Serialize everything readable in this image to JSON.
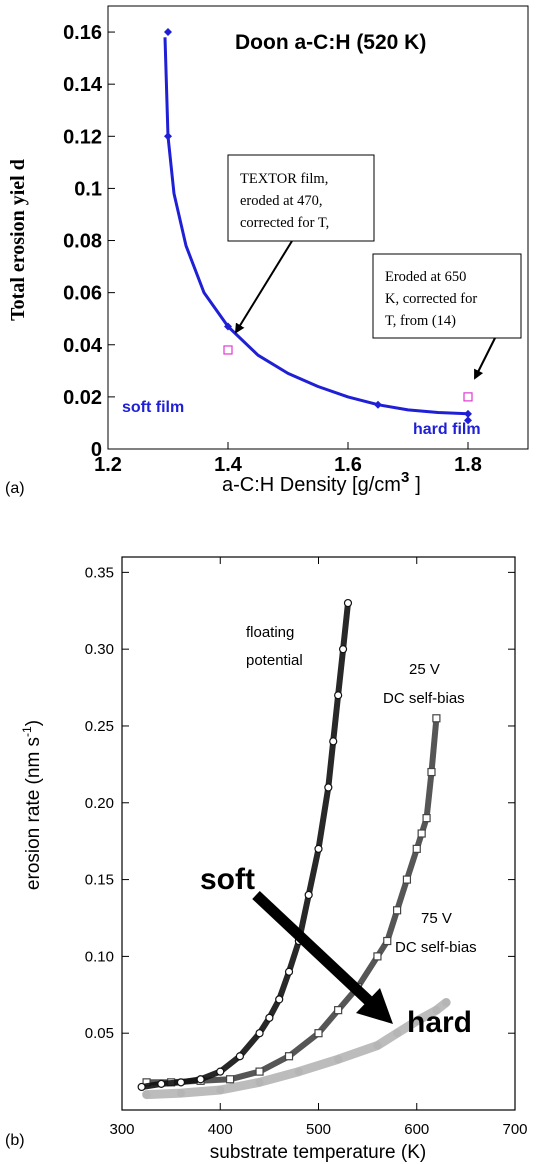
{
  "chart_data": [
    {
      "panel_label": "(a)",
      "type": "line",
      "title": "Doon a-C:H (520 K)",
      "xlabel_main": "a-C:H Density [g/cm",
      "xlabel_sup": "3",
      "xlabel_end": "]",
      "ylabel": "Total erosion yiel d",
      "xlim": [
        1.2,
        1.9
      ],
      "ylim": [
        0,
        0.17
      ],
      "xticks": [
        "1.2",
        "1.4",
        "1.6",
        "1.8"
      ],
      "yticks": [
        "0",
        "0.02",
        "0.04",
        "0.06",
        "0.08",
        "0.1",
        "0.12",
        "0.14",
        "0.16"
      ],
      "color": "#1f1fd6",
      "series": [
        {
          "kind": "fit-curve",
          "x": [
            1.295,
            1.3,
            1.31,
            1.33,
            1.36,
            1.4,
            1.45,
            1.5,
            1.55,
            1.6,
            1.65,
            1.7,
            1.75,
            1.8
          ],
          "y": [
            0.158,
            0.12,
            0.098,
            0.078,
            0.06,
            0.047,
            0.036,
            0.029,
            0.024,
            0.02,
            0.017,
            0.015,
            0.014,
            0.0135
          ]
        },
        {
          "kind": "data-points",
          "x": [
            1.3,
            1.3,
            1.4,
            1.65,
            1.8,
            1.8
          ],
          "y": [
            0.16,
            0.12,
            0.047,
            0.017,
            0.0135,
            0.011
          ]
        },
        {
          "kind": "open-squares",
          "color": "#e03ad0",
          "x": [
            1.4,
            1.8
          ],
          "y": [
            0.038,
            0.02
          ]
        }
      ],
      "annotations": [
        {
          "lines": [
            "TEXTOR film,",
            "eroded at 470,",
            "corrected for T,"
          ],
          "target": [
            1.4,
            0.045
          ]
        },
        {
          "lines": [
            "Eroded at 650",
            "K, corrected for",
            "T, from (14)"
          ],
          "target": [
            1.8,
            0.022
          ]
        }
      ],
      "labels": [
        {
          "text": "soft film",
          "at": [
            1.3,
            0.012
          ]
        },
        {
          "text": "hard film",
          "at": [
            1.82,
            0.004
          ]
        }
      ]
    },
    {
      "panel_label": "(b)",
      "type": "scatter",
      "xlabel": "substrate temperature (K)",
      "ylabel_main": "erosion rate (nm s",
      "ylabel_sup": "-1",
      "ylabel_end": ")",
      "xlim": [
        300,
        700
      ],
      "ylim": [
        0,
        0.36
      ],
      "xticks": [
        "300",
        "400",
        "500",
        "600",
        "700"
      ],
      "yticks": [
        "0.05",
        "0.10",
        "0.15",
        "0.20",
        "0.25",
        "0.30",
        "0.35"
      ],
      "series": [
        {
          "name": "floating potential",
          "color": "#111111",
          "x": [
            320,
            340,
            360,
            380,
            400,
            420,
            440,
            450,
            460,
            470,
            480,
            490,
            500,
            510,
            515,
            520,
            525,
            530
          ],
          "y": [
            0.015,
            0.017,
            0.018,
            0.02,
            0.025,
            0.035,
            0.05,
            0.06,
            0.072,
            0.09,
            0.11,
            0.14,
            0.17,
            0.21,
            0.24,
            0.27,
            0.3,
            0.33
          ]
        },
        {
          "name": "25 V DC self-bias",
          "color": "#444444",
          "x": [
            325,
            350,
            380,
            410,
            440,
            470,
            500,
            520,
            540,
            560,
            570,
            580,
            590,
            600,
            605,
            610,
            615,
            620
          ],
          "y": [
            0.018,
            0.018,
            0.019,
            0.02,
            0.025,
            0.035,
            0.05,
            0.065,
            0.08,
            0.1,
            0.11,
            0.13,
            0.15,
            0.17,
            0.18,
            0.19,
            0.22,
            0.255
          ]
        },
        {
          "name": "75 V DC self-bias",
          "color": "#b5b5b5",
          "x": [
            325,
            360,
            400,
            440,
            480,
            520,
            560,
            580,
            600,
            620,
            630
          ],
          "y": [
            0.01,
            0.011,
            0.013,
            0.018,
            0.025,
            0.033,
            0.042,
            0.05,
            0.058,
            0.065,
            0.07
          ]
        }
      ],
      "annotations": [
        {
          "lines": [
            "floating",
            "potential"
          ]
        },
        {
          "lines": [
            "25 V",
            "DC self-bias"
          ]
        },
        {
          "lines": [
            "75 V",
            "DC self-bias"
          ]
        },
        {
          "text": "soft"
        },
        {
          "text": "hard"
        }
      ]
    }
  ]
}
